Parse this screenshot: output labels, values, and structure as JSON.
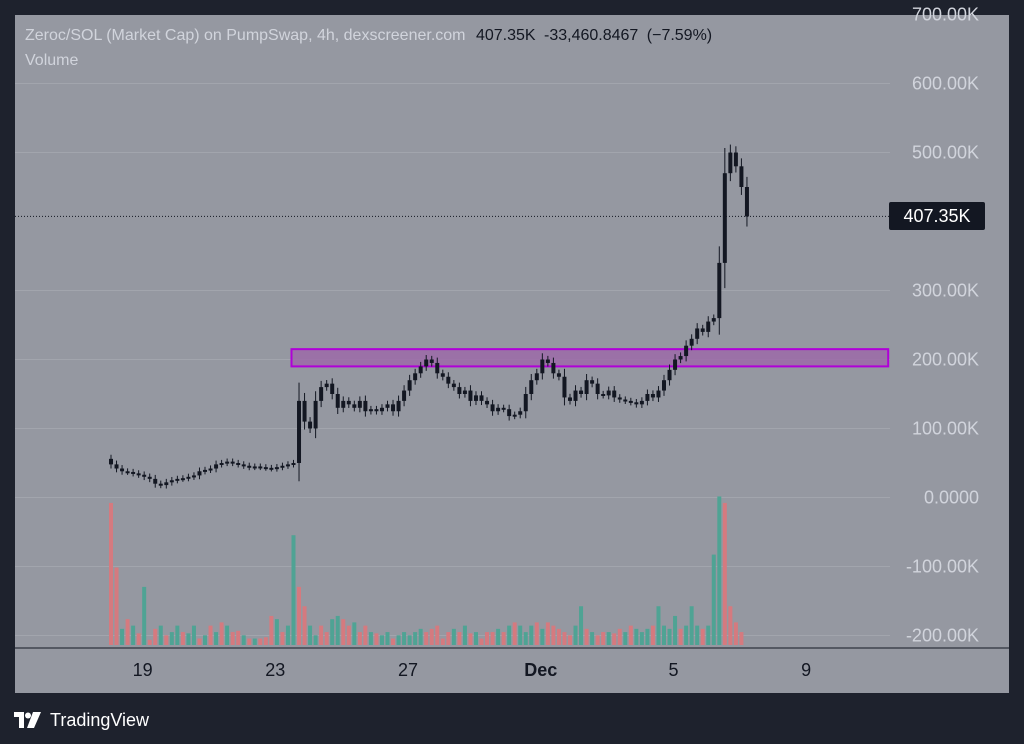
{
  "header": {
    "title": "Zeroc/SOL (Market Cap) on PumpSwap, 4h, dexscreener.com",
    "last_value": "407.35K",
    "change_abs": "-33,460.8467",
    "change_pct": "(−7.59%)",
    "volume_label": "Volume"
  },
  "price_badge": "407.35K",
  "footer": {
    "brand": "TradingView",
    "logo_icon": "tradingview-logo-icon"
  },
  "colors": {
    "background": "#1e222d",
    "panel": "#9598a1",
    "candle": "#131722",
    "volume_up": "#4fa394",
    "volume_down": "#d57a7f",
    "zone_fill": "#9c6aa8",
    "zone_border": "#b000d8"
  },
  "chart_data": {
    "type": "candlestick",
    "title": "Zeroc/SOL (Market Cap) on PumpSwap, 4h, dexscreener.com",
    "last_price": 407.35,
    "last_price_label": "407.35K",
    "y_unit": "K",
    "ylim": [
      -230,
      700
    ],
    "y_ticks": [
      {
        "v": 700,
        "label": "700.00K"
      },
      {
        "v": 600,
        "label": "600.00K"
      },
      {
        "v": 500,
        "label": "500.00K"
      },
      {
        "v": 300,
        "label": "300.00K"
      },
      {
        "v": 200,
        "label": "200.00K"
      },
      {
        "v": 100,
        "label": "100.00K"
      },
      {
        "v": 0,
        "label": "0.0000"
      },
      {
        "v": -100,
        "label": "-100.00K"
      },
      {
        "v": -200,
        "label": "-200.00K"
      }
    ],
    "x_ticks": [
      {
        "i": 3,
        "label": "19",
        "bold": false
      },
      {
        "i": 27,
        "label": "23",
        "bold": false
      },
      {
        "i": 51,
        "label": "27",
        "bold": false
      },
      {
        "i": 75,
        "label": "Dec",
        "bold": true
      },
      {
        "i": 99,
        "label": "5",
        "bold": false
      },
      {
        "i": 123,
        "label": "9",
        "bold": false
      }
    ],
    "resistance_zone": {
      "from_index": 33,
      "to_index": 140,
      "low": 190,
      "high": 215
    },
    "close_values": [
      48,
      42,
      38,
      37,
      35,
      33,
      30,
      27,
      20,
      18,
      22,
      25,
      27,
      28,
      30,
      32,
      38,
      40,
      42,
      48,
      50,
      52,
      50,
      48,
      46,
      44,
      45,
      44,
      43,
      42,
      44,
      46,
      48,
      50,
      140,
      110,
      100,
      140,
      160,
      165,
      150,
      130,
      140,
      135,
      130,
      140,
      125,
      128,
      125,
      130,
      135,
      125,
      140,
      155,
      170,
      180,
      190,
      200,
      195,
      180,
      175,
      165,
      160,
      150,
      155,
      140,
      148,
      140,
      135,
      125,
      130,
      128,
      118,
      120,
      125,
      150,
      170,
      180,
      200,
      195,
      180,
      175,
      145,
      140,
      155,
      150,
      170,
      165,
      150,
      148,
      155,
      145,
      142,
      140,
      138,
      135,
      140,
      150,
      145,
      155,
      170,
      185,
      200,
      205,
      220,
      230,
      245,
      240,
      255,
      260,
      340,
      470,
      500,
      480,
      450,
      407.35
    ],
    "volume": [
      220,
      120,
      25,
      40,
      30,
      18,
      90,
      8,
      25,
      30,
      15,
      20,
      30,
      20,
      18,
      30,
      10,
      15,
      30,
      20,
      35,
      30,
      20,
      22,
      15,
      10,
      10,
      10,
      12,
      45,
      40,
      20,
      30,
      170,
      90,
      60,
      30,
      15,
      30,
      20,
      40,
      45,
      40,
      30,
      35,
      20,
      30,
      20,
      18,
      15,
      20,
      10,
      15,
      20,
      15,
      20,
      25,
      20,
      25,
      30,
      10,
      20,
      25,
      20,
      30,
      18,
      20,
      10,
      20,
      20,
      25,
      20,
      30,
      35,
      30,
      20,
      30,
      35,
      25,
      35,
      30,
      25,
      20,
      15,
      30,
      60,
      25,
      20,
      15,
      20,
      20,
      18,
      25,
      20,
      30,
      25,
      20,
      25,
      30,
      60,
      30,
      25,
      45,
      25,
      30,
      60,
      30,
      25,
      30,
      140,
      230,
      220,
      60,
      35,
      20
    ],
    "volume_up": [
      false,
      false,
      true,
      false,
      true,
      false,
      true,
      false,
      false,
      true,
      false,
      true,
      true,
      false,
      true,
      true,
      false,
      true,
      false,
      true,
      false,
      true,
      false,
      false,
      true,
      false,
      true,
      false,
      false,
      false,
      true,
      false,
      true,
      true,
      false,
      false,
      true,
      true,
      false,
      false,
      true,
      true,
      false,
      false,
      true,
      false,
      false,
      true,
      false,
      true,
      true,
      false,
      true,
      true,
      true,
      true,
      true,
      false,
      false,
      false,
      false,
      false,
      true,
      false,
      true,
      false,
      true,
      false,
      false,
      false,
      true,
      false,
      true,
      false,
      true,
      true,
      true,
      false,
      true,
      false,
      false,
      false,
      false,
      false,
      true,
      true,
      false,
      true,
      false,
      false,
      true,
      false,
      false,
      true,
      false,
      true,
      true,
      true,
      false,
      true,
      true,
      true,
      true,
      false,
      true,
      true,
      true,
      false,
      true,
      true,
      true,
      false,
      false,
      false,
      false
    ]
  }
}
